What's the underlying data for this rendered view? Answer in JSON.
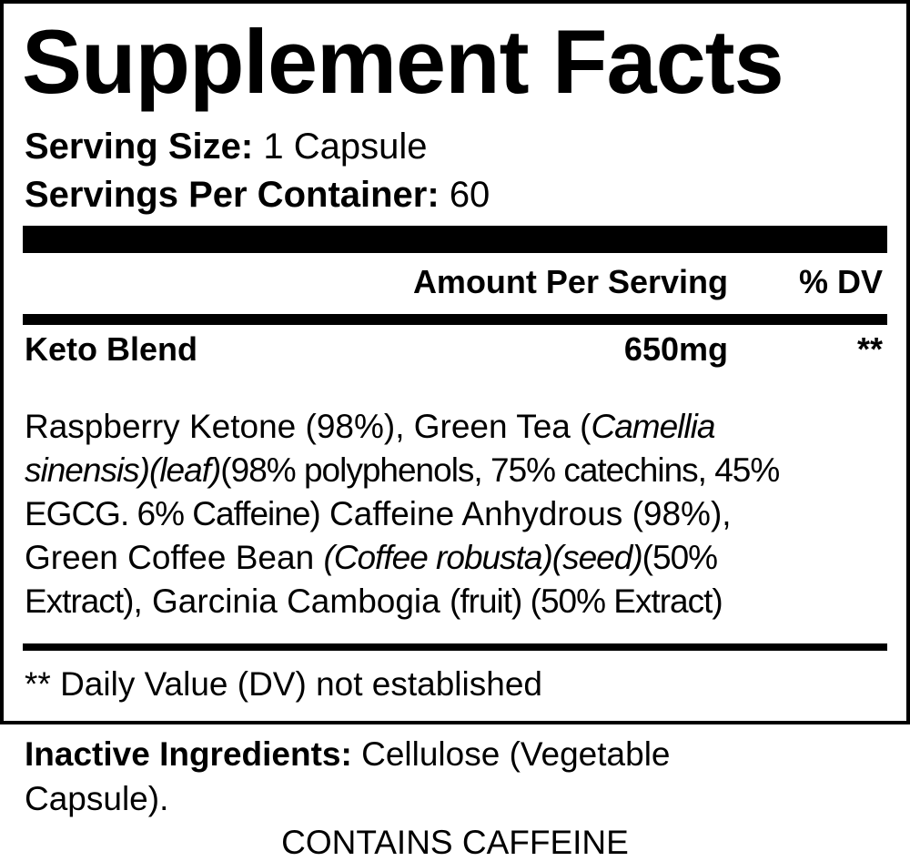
{
  "title": "Supplement Facts",
  "serving_size": {
    "label": "Serving Size:",
    "value": "1 Capsule"
  },
  "servings_per_container": {
    "label": "Servings Per Container:",
    "value": "60"
  },
  "header": {
    "amount": "Amount Per Serving",
    "dv": "% DV"
  },
  "blend": {
    "name": "Keto Blend",
    "amount": "650mg",
    "dv": "**"
  },
  "ingredients_lines": [
    [
      {
        "t": "Raspberry Ketone (98%), Green Tea (",
        "s": "n"
      },
      {
        "t": "Camellia",
        "s": "i"
      }
    ],
    [
      {
        "t": "sinensis)(leaf)",
        "s": "i"
      },
      {
        "t": "(98% polyphenols, 75% catechins, 45%",
        "s": "c"
      }
    ],
    [
      {
        "t": "EGCG. 6% Caffeine)",
        "s": "c"
      },
      {
        "t": " Caffeine Anhydrous (98%),",
        "s": "n"
      }
    ],
    [
      {
        "t": "Green Coffee Bean ",
        "s": "n"
      },
      {
        "t": "(Coffee robusta)(seed)",
        "s": "i"
      },
      {
        "t": "(50%",
        "s": "c"
      }
    ],
    [
      {
        "t": "Extract)",
        "s": "c"
      },
      {
        "t": ", Garcinia Cambogia ",
        "s": "n"
      },
      {
        "t": "(fruit) (50% Extract)",
        "s": "c"
      }
    ]
  ],
  "footnote": "** Daily Value (DV) not established",
  "inactive": {
    "label": "Inactive Ingredients:",
    "line1": " Cellulose (Vegetable",
    "line2": "Capsule)."
  },
  "warning": "CONTAINS CAFFEINE"
}
